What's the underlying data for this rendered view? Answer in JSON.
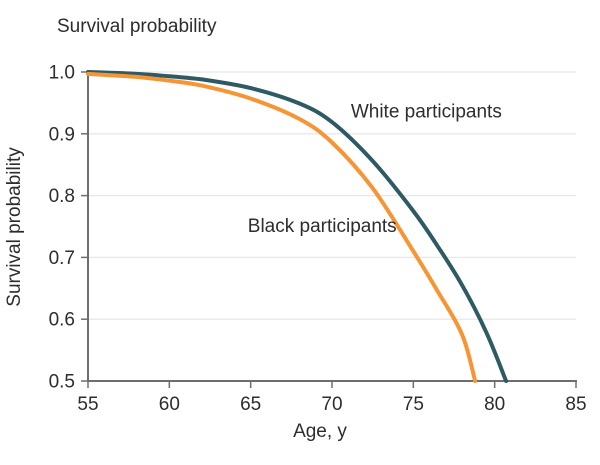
{
  "figure": {
    "title": "Survival probability",
    "x_axis_label": "Age, y",
    "y_axis_label": "Survival probability"
  },
  "chart_data": {
    "type": "line",
    "title": "Survival probability",
    "xlabel": "Age, y",
    "ylabel": "Survival probability",
    "xlim": [
      55,
      85
    ],
    "ylim": [
      0.5,
      1.0
    ],
    "x_ticks": [
      "55",
      "60",
      "65",
      "70",
      "75",
      "80",
      "85"
    ],
    "y_ticks": [
      "1.0",
      "0.9",
      "0.8",
      "0.7",
      "0.6",
      "0.5"
    ],
    "grid": "horizontal-gridlines-at-each-0.1",
    "legend": "inline-curve-labels",
    "series": [
      {
        "name": "White participants",
        "color": "#2E5A63",
        "points": [
          [
            55,
            1.0
          ],
          [
            58,
            0.997
          ],
          [
            60,
            0.993
          ],
          [
            62,
            0.988
          ],
          [
            65,
            0.974
          ],
          [
            68,
            0.949
          ],
          [
            70,
            0.919
          ],
          [
            72.5,
            0.856
          ],
          [
            75,
            0.775
          ],
          [
            76.5,
            0.718
          ],
          [
            78,
            0.655
          ],
          [
            79.5,
            0.578
          ],
          [
            80.7,
            0.5
          ]
        ]
      },
      {
        "name": "Black participants",
        "color": "#F79434",
        "points": [
          [
            55,
            0.997
          ],
          [
            58,
            0.992
          ],
          [
            60,
            0.986
          ],
          [
            62,
            0.978
          ],
          [
            65,
            0.957
          ],
          [
            68,
            0.924
          ],
          [
            70,
            0.886
          ],
          [
            72.5,
            0.812
          ],
          [
            75,
            0.71
          ],
          [
            76.5,
            0.645
          ],
          [
            78,
            0.575
          ],
          [
            78.8,
            0.5
          ]
        ]
      }
    ],
    "annotations": [
      {
        "text": "White participants",
        "x": 75.8,
        "y": 0.937
      },
      {
        "text": "Black participants",
        "x": 69.4,
        "y": 0.752
      }
    ],
    "colors": {
      "grid": "#E8E8E8",
      "axis": "#6E6E6E",
      "text": "#2D2D2D",
      "background": "#FFFFFF"
    }
  }
}
